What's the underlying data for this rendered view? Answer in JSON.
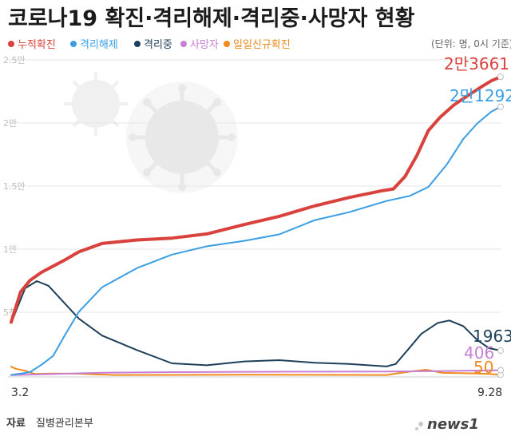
{
  "title": "코로나19 확진·격리해제·격리중·사망자 현황",
  "unit_note": "(단위: 명, 0시 기준)",
  "source_label": "자료",
  "source_value": "질병관리본부",
  "logo": "news1",
  "colors": {
    "cumulative": "#d9413d",
    "released": "#3a9ee4",
    "isolated": "#1e3f5a",
    "deaths": "#c77fd6",
    "daily": "#f08a1c"
  },
  "chart_data": {
    "type": "line",
    "title": "코로나19 확진·격리해제·격리중·사망자 현황",
    "xlabel": "",
    "ylabel": "",
    "x_start_label": "3.2",
    "x_end_label": "9.28",
    "x_range": [
      "2020-03-02",
      "2020-09-28"
    ],
    "ylim": [
      0,
      25000
    ],
    "ytick_labels": [
      "2.5만",
      "2만",
      "1.5만",
      "1만",
      "5천"
    ],
    "ytick_values": [
      25000,
      20000,
      15000,
      10000,
      5000
    ],
    "grid": true,
    "legend_position": "top-left",
    "series": [
      {
        "key": "cumulative",
        "name": "누적확진",
        "end_label": "2만3661",
        "points": [
          [
            "2020-03-02",
            4212
          ],
          [
            "2020-03-06",
            6593
          ],
          [
            "2020-03-10",
            7513
          ],
          [
            "2020-03-15",
            8162
          ],
          [
            "2020-03-20",
            8652
          ],
          [
            "2020-03-25",
            9137
          ],
          [
            "2020-03-31",
            9786
          ],
          [
            "2020-04-10",
            10450
          ],
          [
            "2020-04-25",
            10728
          ],
          [
            "2020-05-10",
            10874
          ],
          [
            "2020-05-25",
            11206
          ],
          [
            "2020-06-10",
            11947
          ],
          [
            "2020-06-25",
            12602
          ],
          [
            "2020-07-10",
            13417
          ],
          [
            "2020-07-25",
            14092
          ],
          [
            "2020-08-08",
            14626
          ],
          [
            "2020-08-13",
            14770
          ],
          [
            "2020-08-18",
            15761
          ],
          [
            "2020-08-23",
            17399
          ],
          [
            "2020-08-28",
            19400
          ],
          [
            "2020-09-02",
            20449
          ],
          [
            "2020-09-08",
            21432
          ],
          [
            "2020-09-14",
            22176
          ],
          [
            "2020-09-20",
            22893
          ],
          [
            "2020-09-24",
            23341
          ],
          [
            "2020-09-28",
            23661
          ]
        ]
      },
      {
        "key": "released",
        "name": "격리해제",
        "end_label": "2만1292",
        "points": [
          [
            "2020-03-02",
            30
          ],
          [
            "2020-03-10",
            247
          ],
          [
            "2020-03-15",
            834
          ],
          [
            "2020-03-20",
            1540
          ],
          [
            "2020-03-25",
            3166
          ],
          [
            "2020-03-31",
            5033
          ],
          [
            "2020-04-10",
            6973
          ],
          [
            "2020-04-25",
            8501
          ],
          [
            "2020-05-10",
            9568
          ],
          [
            "2020-05-25",
            10226
          ],
          [
            "2020-06-10",
            10660
          ],
          [
            "2020-06-25",
            11172
          ],
          [
            "2020-07-10",
            12282
          ],
          [
            "2020-07-25",
            12929
          ],
          [
            "2020-08-10",
            13817
          ],
          [
            "2020-08-20",
            14219
          ],
          [
            "2020-08-28",
            14928
          ],
          [
            "2020-09-05",
            16735
          ],
          [
            "2020-09-12",
            18742
          ],
          [
            "2020-09-18",
            19970
          ],
          [
            "2020-09-24",
            20891
          ],
          [
            "2020-09-28",
            21292
          ]
        ]
      },
      {
        "key": "isolated",
        "name": "격리중",
        "end_label": "1963",
        "points": [
          [
            "2020-03-02",
            4150
          ],
          [
            "2020-03-08",
            6900
          ],
          [
            "2020-03-13",
            7470
          ],
          [
            "2020-03-18",
            7100
          ],
          [
            "2020-03-24",
            5900
          ],
          [
            "2020-03-31",
            4500
          ],
          [
            "2020-04-10",
            3150
          ],
          [
            "2020-04-25",
            2000
          ],
          [
            "2020-05-10",
            950
          ],
          [
            "2020-05-25",
            800
          ],
          [
            "2020-06-10",
            1100
          ],
          [
            "2020-06-25",
            1200
          ],
          [
            "2020-07-10",
            1000
          ],
          [
            "2020-07-25",
            900
          ],
          [
            "2020-08-10",
            700
          ],
          [
            "2020-08-14",
            900
          ],
          [
            "2020-08-20",
            2200
          ],
          [
            "2020-08-25",
            3300
          ],
          [
            "2020-09-01",
            4150
          ],
          [
            "2020-09-06",
            4350
          ],
          [
            "2020-09-12",
            3900
          ],
          [
            "2020-09-18",
            2800
          ],
          [
            "2020-09-23",
            2150
          ],
          [
            "2020-09-28",
            1963
          ]
        ]
      },
      {
        "key": "deaths",
        "name": "사망자",
        "end_label": "406",
        "points": [
          [
            "2020-03-02",
            22
          ],
          [
            "2020-03-20",
            102
          ],
          [
            "2020-04-10",
            208
          ],
          [
            "2020-05-10",
            256
          ],
          [
            "2020-06-10",
            277
          ],
          [
            "2020-07-10",
            289
          ],
          [
            "2020-08-10",
            305
          ],
          [
            "2020-09-01",
            326
          ],
          [
            "2020-09-15",
            372
          ],
          [
            "2020-09-28",
            406
          ]
        ]
      },
      {
        "key": "daily",
        "name": "일일신규확진",
        "end_label": "50",
        "points": [
          [
            "2020-03-02",
            686
          ],
          [
            "2020-03-04",
            516
          ],
          [
            "2020-03-08",
            367
          ],
          [
            "2020-03-12",
            114
          ],
          [
            "2020-03-20",
            147
          ],
          [
            "2020-03-31",
            125
          ],
          [
            "2020-04-15",
            27
          ],
          [
            "2020-05-10",
            34
          ],
          [
            "2020-06-10",
            45
          ],
          [
            "2020-07-10",
            35
          ],
          [
            "2020-08-10",
            28
          ],
          [
            "2020-08-15",
            166
          ],
          [
            "2020-08-20",
            288
          ],
          [
            "2020-08-27",
            441
          ],
          [
            "2020-09-03",
            195
          ],
          [
            "2020-09-10",
            176
          ],
          [
            "2020-09-17",
            153
          ],
          [
            "2020-09-23",
            110
          ],
          [
            "2020-09-28",
            50
          ]
        ]
      }
    ]
  }
}
